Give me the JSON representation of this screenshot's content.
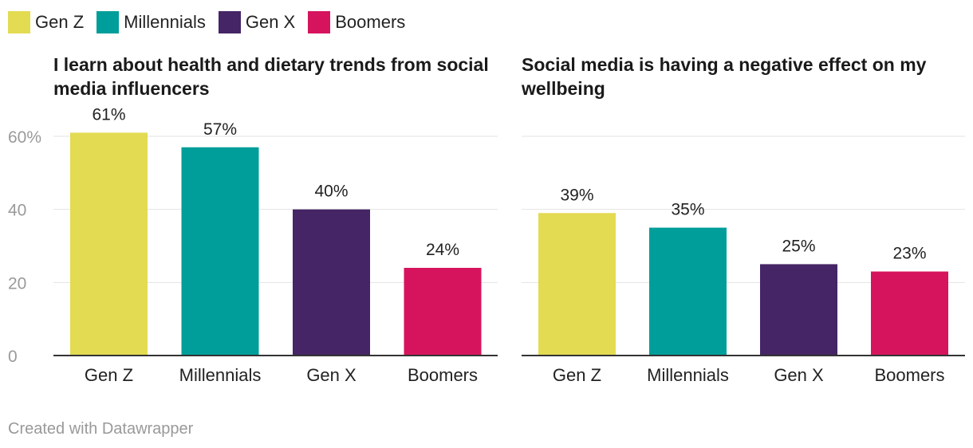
{
  "legend": [
    {
      "label": "Gen Z",
      "color": "#e3db52"
    },
    {
      "label": "Millennials",
      "color": "#009e9a"
    },
    {
      "label": "Gen X",
      "color": "#452565"
    },
    {
      "label": "Boomers",
      "color": "#d6145e"
    }
  ],
  "footer": "Created with Datawrapper",
  "chart_data": [
    {
      "type": "bar",
      "title": "I learn about health and dietary trends from social media influencers",
      "categories": [
        "Gen Z",
        "Millennials",
        "Gen X",
        "Boomers"
      ],
      "values": [
        61,
        57,
        40,
        24
      ],
      "value_labels": [
        "61%",
        "57%",
        "40%",
        "24%"
      ],
      "colors": [
        "#e3db52",
        "#009e9a",
        "#452565",
        "#d6145e"
      ],
      "ylim": [
        0,
        60
      ],
      "yticks": [
        0,
        20,
        40,
        60
      ],
      "ytick_labels": [
        "0",
        "20",
        "40",
        "60%"
      ],
      "grid": true
    },
    {
      "type": "bar",
      "title": "Social media is having a negative effect on my wellbeing",
      "categories": [
        "Gen Z",
        "Millennials",
        "Gen X",
        "Boomers"
      ],
      "values": [
        39,
        35,
        25,
        23
      ],
      "value_labels": [
        "39%",
        "35%",
        "25%",
        "23%"
      ],
      "colors": [
        "#e3db52",
        "#009e9a",
        "#452565",
        "#d6145e"
      ],
      "ylim": [
        0,
        60
      ],
      "yticks": [
        0,
        20,
        40,
        60
      ],
      "grid": true
    }
  ]
}
